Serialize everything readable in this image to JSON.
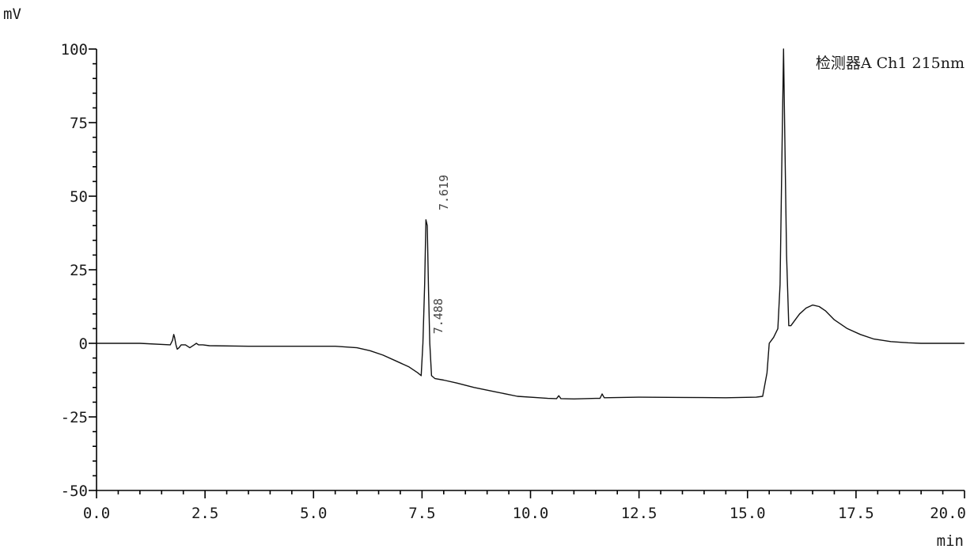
{
  "chart_data": {
    "type": "line",
    "title": "",
    "legend": "检测器A Ch1 215nm",
    "xlabel": "min",
    "ylabel": "mV",
    "xlim": [
      0.0,
      20.0
    ],
    "ylim": [
      -50,
      100
    ],
    "x_ticks": [
      0.0,
      2.5,
      5.0,
      7.5,
      10.0,
      12.5,
      15.0,
      17.5,
      20.0
    ],
    "x_tick_labels": [
      "0.0",
      "2.5",
      "5.0",
      "7.5",
      "10.0",
      "12.5",
      "15.0",
      "17.5",
      "20.0"
    ],
    "y_ticks": [
      100,
      75,
      50,
      25,
      0,
      -25,
      -50
    ],
    "y_tick_labels": [
      "100",
      "75",
      "50",
      "25",
      "0",
      "-25",
      "-50"
    ],
    "grid": false,
    "legend_position": "top-right",
    "peak_labels": [
      {
        "text": "7.619",
        "x": 7.62,
        "y": 43
      },
      {
        "text": "7.488",
        "x": 7.49,
        "y": 1
      }
    ],
    "series": [
      {
        "x": [
          0.0,
          1.0,
          1.7,
          1.75,
          1.78,
          1.8,
          1.83,
          1.86,
          1.9,
          1.95,
          2.05,
          2.15,
          2.25,
          2.3,
          2.35,
          2.45,
          2.6,
          3.5,
          4.5,
          5.5,
          6.0,
          6.3,
          6.6,
          6.9,
          7.2,
          7.4,
          7.48,
          7.52,
          7.56,
          7.59,
          7.62,
          7.65,
          7.68,
          7.72,
          7.8,
          8.0,
          8.3,
          8.7,
          9.2,
          9.7,
          10.2,
          10.4,
          10.6,
          10.65,
          10.7,
          11.0,
          11.5,
          11.6,
          11.65,
          11.7,
          12.5,
          13.5,
          14.5,
          15.2,
          15.35,
          15.45,
          15.5,
          15.55,
          15.6,
          15.7,
          15.75,
          15.8,
          15.83,
          15.86,
          15.9,
          15.95,
          16.0,
          16.1,
          16.2,
          16.35,
          16.5,
          16.65,
          16.8,
          17.0,
          17.3,
          17.6,
          17.9,
          18.3,
          18.7,
          19.0,
          19.3,
          19.6,
          20.0
        ],
        "y": [
          0,
          0,
          -0.5,
          1,
          3,
          2,
          -0.5,
          -2,
          -1.5,
          -0.5,
          -0.5,
          -1.5,
          -0.5,
          0,
          -0.5,
          -0.5,
          -0.8,
          -1,
          -1,
          -1,
          -1.5,
          -2.5,
          -4,
          -6,
          -8,
          -10,
          -11,
          0,
          20,
          42,
          40,
          18,
          0,
          -11,
          -12,
          -12.5,
          -13.5,
          -15,
          -16.5,
          -18,
          -18.5,
          -18.7,
          -18.8,
          -17.8,
          -18.8,
          -18.9,
          -18.7,
          -18.7,
          -17.2,
          -18.5,
          -18.3,
          -18.4,
          -18.5,
          -18.3,
          -18,
          -10,
          0,
          1,
          2,
          5,
          20,
          70,
          100,
          70,
          30,
          6,
          6,
          8,
          10,
          12,
          13,
          12.5,
          11,
          8,
          5,
          3,
          1.5,
          0.6,
          0.2,
          0,
          0,
          0,
          0
        ]
      }
    ],
    "colors": {
      "trace": "#111111",
      "axis": "#000000",
      "background": "#ffffff",
      "annotation": "#444444"
    }
  }
}
